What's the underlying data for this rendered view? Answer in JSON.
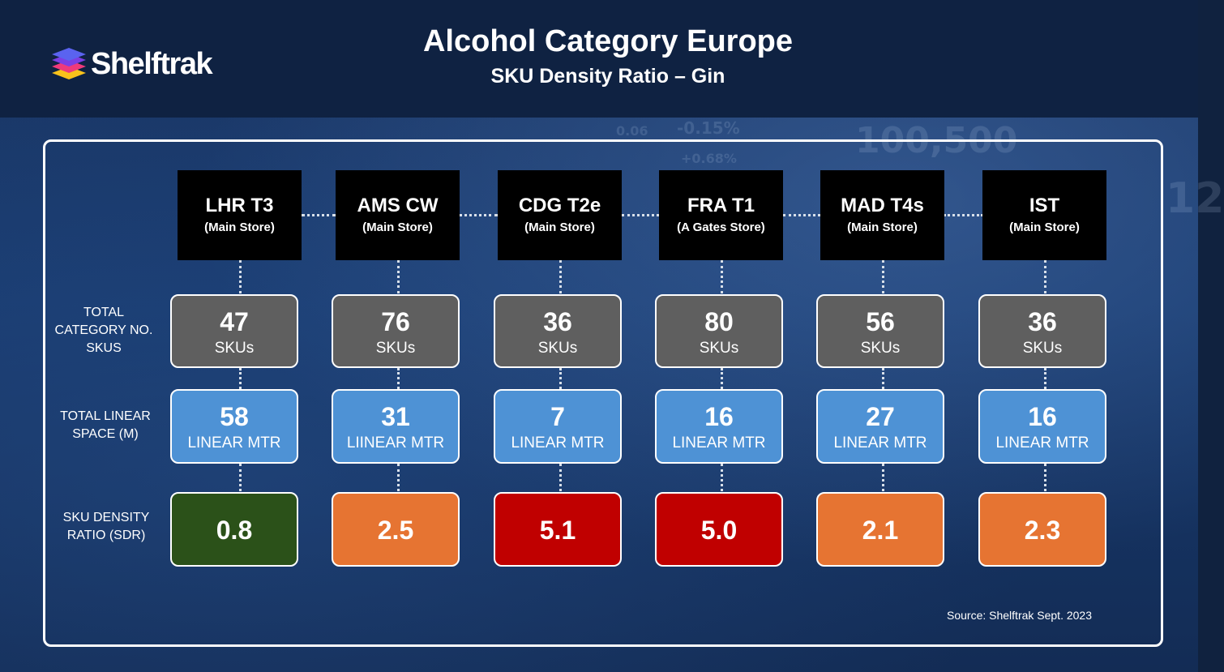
{
  "header": {
    "logo_text": "Shelftrak",
    "title": "Alcohol Category Europe",
    "subtitle": "SKU Density Ratio –  Gin"
  },
  "row_labels": {
    "skus": [
      "TOTAL",
      "CATEGORY NO.",
      "SKUS"
    ],
    "linear": [
      "TOTAL LINEAR",
      "SPACE (M)"
    ],
    "sdr": [
      "SKU DENSITY",
      "RATIO (SDR)"
    ]
  },
  "stores": [
    {
      "name": "LHR T3",
      "sub": "(Main Store)",
      "skus": "47",
      "sku_unit": "SKUs",
      "linear": "58",
      "linear_unit": "LINEAR MTR",
      "sdr": "0.8",
      "sdr_color": "#2b5119"
    },
    {
      "name": "AMS CW",
      "sub": "(Main Store)",
      "skus": "76",
      "sku_unit": "SKUs",
      "linear": "31",
      "linear_unit": "LIINEAR MTR",
      "sdr": "2.5",
      "sdr_color": "#e67432"
    },
    {
      "name": "CDG T2e",
      "sub": "(Main Store)",
      "skus": "36",
      "sku_unit": "SKUs",
      "linear": "7",
      "linear_unit": "LINEAR MTR",
      "sdr": "5.1",
      "sdr_color": "#c00000"
    },
    {
      "name": "FRA T1",
      "sub": "(A Gates Store)",
      "skus": "80",
      "sku_unit": "SKUs",
      "linear": "16",
      "linear_unit": "LINEAR MTR",
      "sdr": "5.0",
      "sdr_color": "#c00000"
    },
    {
      "name": "MAD T4s",
      "sub": "(Main Store)",
      "skus": "56",
      "sku_unit": "SKUs",
      "linear": "27",
      "linear_unit": "LINEAR MTR",
      "sdr": "2.1",
      "sdr_color": "#e67432"
    },
    {
      "name": "IST",
      "sub": "(Main Store)",
      "skus": "36",
      "sku_unit": "SKUs",
      "linear": "16",
      "linear_unit": "LINEAR MTR",
      "sdr": "2.3",
      "sdr_color": "#e67432"
    }
  ],
  "background_numbers": [
    "100,500",
    "-0.15%",
    "+0.68%",
    "0.06",
    "12"
  ],
  "source": "Source: Shelftrak Sept. 2023"
}
